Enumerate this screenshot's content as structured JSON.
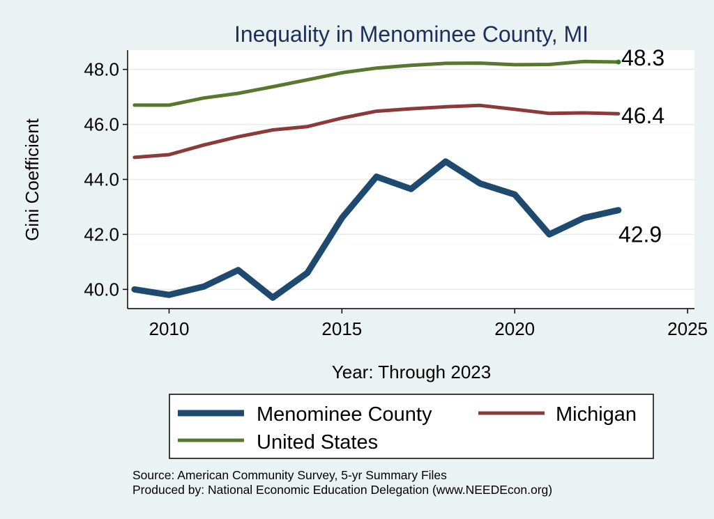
{
  "chart_data": {
    "type": "line",
    "title": "Inequality in Menominee County, MI",
    "xlabel": "Year: Through 2023",
    "ylabel": "Gini Coefficient",
    "xlim": [
      2008.8,
      2025.2
    ],
    "ylim": [
      39.3,
      48.7
    ],
    "x_ticks": [
      2010,
      2015,
      2020,
      2025
    ],
    "x_tick_labels": [
      "2010",
      "2015",
      "2020",
      "2025"
    ],
    "y_ticks": [
      40,
      42,
      44,
      46,
      48
    ],
    "y_tick_labels": [
      "40.0",
      "42.0",
      "44.0",
      "46.0",
      "48.0"
    ],
    "grid": true,
    "x": [
      2009,
      2010,
      2011,
      2012,
      2013,
      2014,
      2015,
      2016,
      2017,
      2018,
      2019,
      2020,
      2021,
      2022,
      2023
    ],
    "series": [
      {
        "name": "Menominee County",
        "color": "#1f4a70",
        "values": [
          40.0,
          39.8,
          40.1,
          40.7,
          39.7,
          40.6,
          42.6,
          44.1,
          43.65,
          44.65,
          43.85,
          43.45,
          42.0,
          42.6,
          42.88
        ],
        "end_label": "42.9"
      },
      {
        "name": "Michigan",
        "color": "#8b3a3a",
        "values": [
          44.8,
          44.9,
          45.25,
          45.55,
          45.8,
          45.92,
          46.23,
          46.48,
          46.57,
          46.64,
          46.69,
          46.55,
          46.4,
          46.42,
          46.39
        ],
        "end_label": "46.4"
      },
      {
        "name": "United States",
        "color": "#58772f",
        "values": [
          46.7,
          46.7,
          46.96,
          47.13,
          47.37,
          47.62,
          47.88,
          48.05,
          48.15,
          48.22,
          48.23,
          48.17,
          48.18,
          48.29,
          48.27
        ],
        "end_label": "48.3"
      }
    ],
    "legend": {
      "placement": "bottom",
      "entries": [
        "Menominee County",
        "Michigan",
        "United States"
      ]
    },
    "notes": [
      "Source: American Community Survey, 5-yr Summary Files",
      "Produced by: National Economic Education Delegation (www.NEEDEcon.org)"
    ]
  },
  "colors": {
    "background": "#eaf2f3",
    "plot_background": "#ffffff",
    "title": "#1f2f5c",
    "grid": "#e6ecec",
    "axis": "#000000",
    "end_marker_us": "#2e7d1e"
  }
}
